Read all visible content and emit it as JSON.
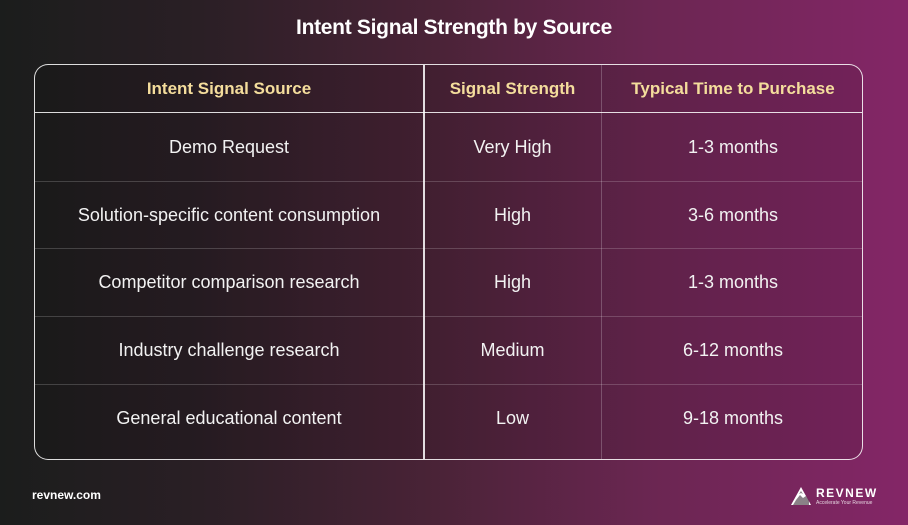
{
  "title": "Intent Signal Strength by Source",
  "table": {
    "headers": [
      "Intent Signal Source",
      "Signal Strength",
      "Typical Time to Purchase"
    ],
    "rows": [
      [
        "Demo Request",
        "Very High",
        "1-3 months"
      ],
      [
        "Solution-specific content consumption",
        "High",
        "3-6 months"
      ],
      [
        "Competitor comparison research",
        "High",
        "1-3 months"
      ],
      [
        "Industry challenge research",
        "Medium",
        "6-12 months"
      ],
      [
        "General educational content",
        "Low",
        "9-18 months"
      ]
    ]
  },
  "footer": {
    "url": "revnew.com",
    "brand_name": "REVNEW",
    "brand_tagline": "Accelerate Your Revenue"
  },
  "colors": {
    "header_text": "#f4dd9c",
    "gradient_start": "#1b1d1c",
    "gradient_end": "#842667"
  },
  "icons": {
    "brand_logo": "mountain-triangle-icon"
  }
}
